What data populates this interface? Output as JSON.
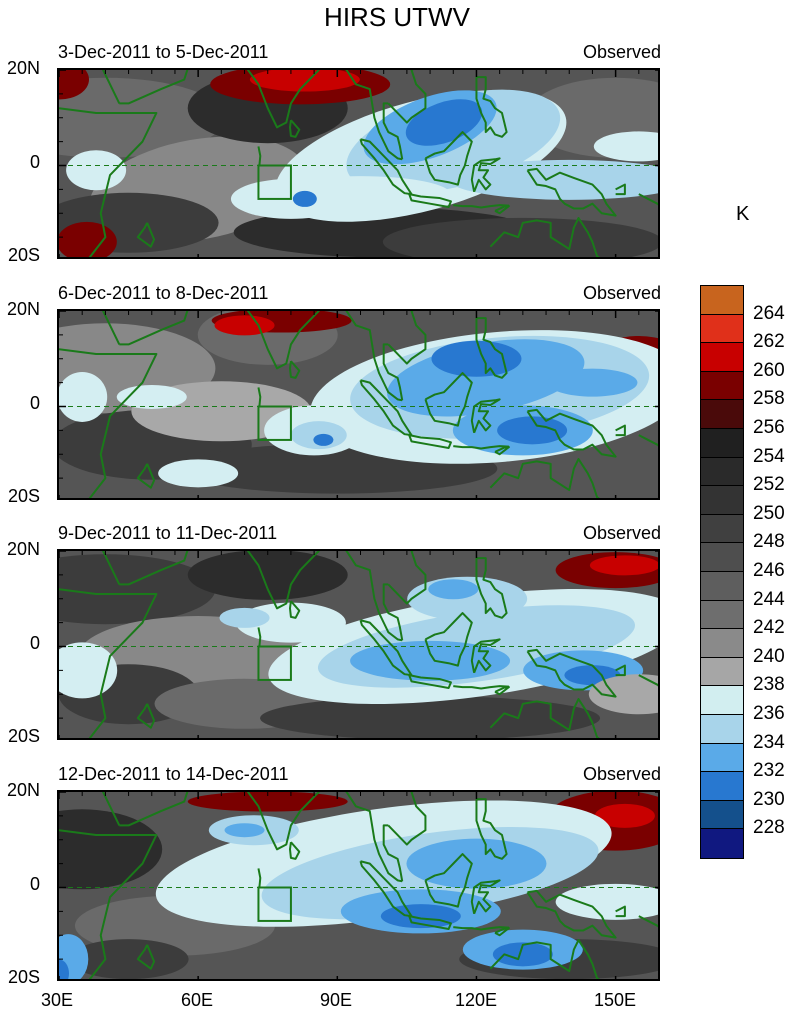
{
  "title": "HIRS UTWV",
  "panels": [
    {
      "date_range": "3-Dec-2011 to 5-Dec-2011",
      "status": "Observed"
    },
    {
      "date_range": "6-Dec-2011 to 8-Dec-2011",
      "status": "Observed"
    },
    {
      "date_range": "9-Dec-2011 to 11-Dec-2011",
      "status": "Observed"
    },
    {
      "date_range": "12-Dec-2011 to 14-Dec-2011",
      "status": "Observed"
    }
  ],
  "lat_labels": [
    "20N",
    "0",
    "20S"
  ],
  "lon_labels": [
    "30E",
    "60E",
    "90E",
    "120E",
    "150E"
  ],
  "colorbar": {
    "unit": "K",
    "labels": [
      "264",
      "262",
      "260",
      "258",
      "256",
      "254",
      "252",
      "250",
      "248",
      "246",
      "244",
      "242",
      "240",
      "238",
      "236",
      "234",
      "232",
      "230",
      "228"
    ],
    "colors": [
      "#c8641e",
      "#e0301a",
      "#c80000",
      "#7a0000",
      "#4a0a0a",
      "#202020",
      "#2a2a2a",
      "#333333",
      "#404040",
      "#4e4e4e",
      "#5e5e5e",
      "#6e6e6e",
      "#8a8a8a",
      "#a6a6a6",
      "#d2eef0",
      "#a8d4ea",
      "#5aaae8",
      "#2878d0",
      "#14508c",
      "#101880"
    ]
  },
  "map": {
    "coastline_color": "#1a7a1a",
    "lon_range": [
      30,
      160
    ],
    "lat_range": [
      -20,
      20
    ]
  }
}
